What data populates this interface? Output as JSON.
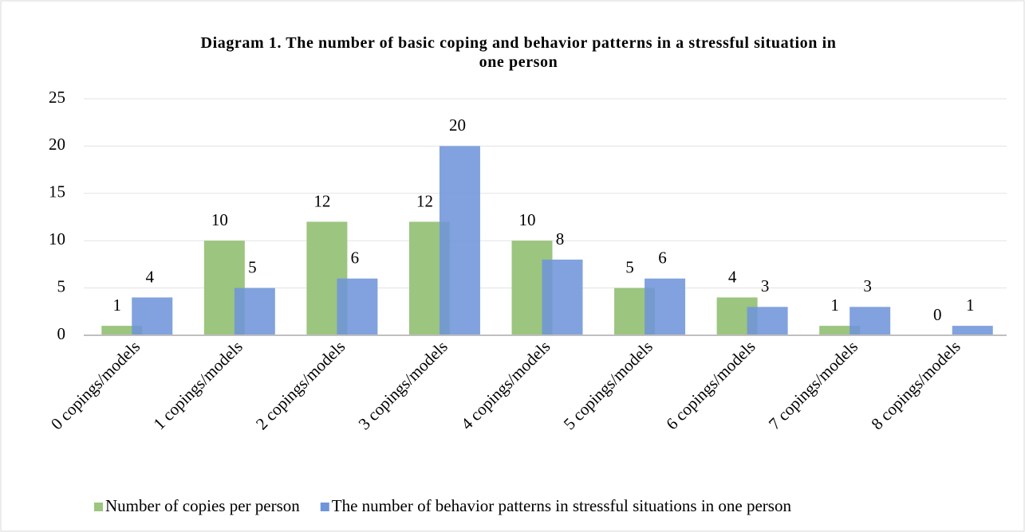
{
  "chart_data": {
    "type": "bar",
    "title": "Diagram 1. The number of basic coping and behavior patterns in a stressful situation in one person",
    "categories": [
      "0 copings/models",
      "1 copings/models",
      "2 copings/models",
      "3 copings/models",
      "4 copings/models",
      "5 copings/models",
      "6 copings/models",
      "7 copings/models",
      "8 copings/models"
    ],
    "series": [
      {
        "name": "Number of copies per person",
        "color": "#9cc57f",
        "values": [
          1,
          10,
          12,
          12,
          10,
          5,
          4,
          1,
          0
        ]
      },
      {
        "name": "The number of behavior patterns in stressful situations in one person",
        "color": "#6f95da",
        "values": [
          4,
          5,
          6,
          20,
          8,
          6,
          3,
          3,
          1
        ]
      }
    ],
    "ylim": [
      0,
      25
    ],
    "yticks": [
      0,
      5,
      10,
      15,
      20,
      25
    ],
    "grid": true,
    "legend": "bottom"
  }
}
